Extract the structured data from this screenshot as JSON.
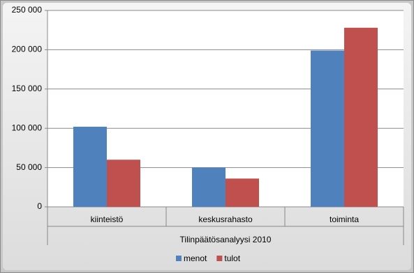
{
  "chart_data": {
    "type": "bar",
    "categories": [
      "kiinteistö",
      "keskusrahasto",
      "toiminta"
    ],
    "group_label": "Tilinpäätösanalyysi 2010",
    "series": [
      {
        "name": "menot",
        "color": "#4f81bd",
        "values": [
          102000,
          50000,
          199000
        ]
      },
      {
        "name": "tulot",
        "color": "#c0504d",
        "values": [
          60000,
          36000,
          228000
        ]
      }
    ],
    "ylim": [
      0,
      250000
    ],
    "yticks": [
      0,
      {
        "value": 50000,
        "label": "50 000"
      },
      {
        "value": 100000,
        "label": "100 000"
      },
      {
        "value": 150000,
        "label": "150 000"
      },
      {
        "value": 200000,
        "label": "200 000"
      },
      {
        "value": 250000,
        "label": "250 000"
      }
    ],
    "grid": true,
    "legend": "bottom"
  }
}
